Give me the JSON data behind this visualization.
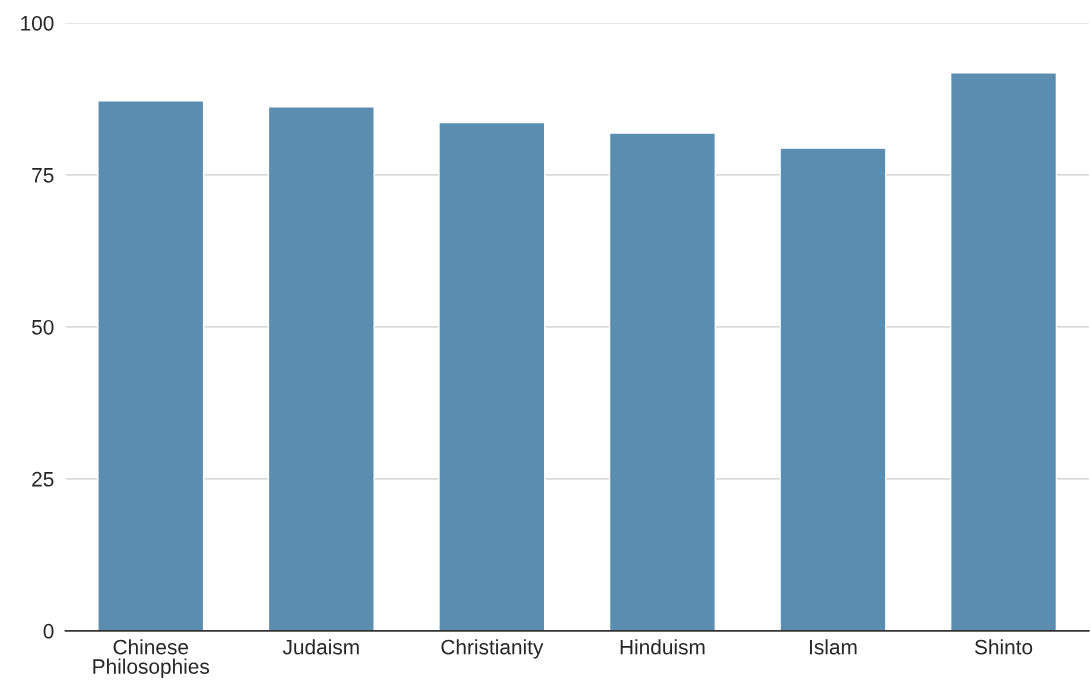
{
  "chart_data": {
    "type": "bar",
    "categories": [
      "Chinese Philosophies",
      "Judaism",
      "Christianity",
      "Hinduism",
      "Islam",
      "Shinto"
    ],
    "values": [
      87.2,
      86.2,
      83.6,
      81.9,
      79.4,
      91.8
    ],
    "color": "#5a8daf",
    "ylim": [
      0,
      100
    ],
    "yticks": [
      0,
      25,
      50,
      75,
      100
    ],
    "grid": "y",
    "legend": false
  }
}
